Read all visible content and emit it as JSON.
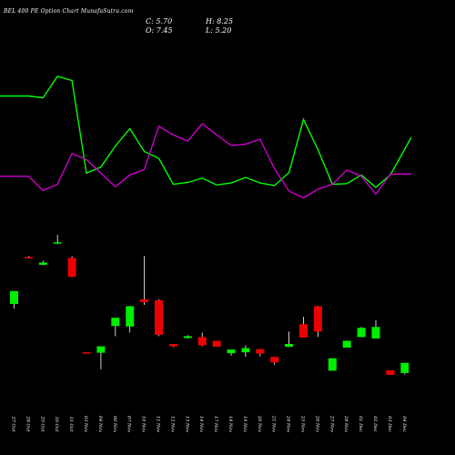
{
  "header": {
    "title": "BEL 400 PE Option Chart MunafaSutra.com",
    "close_label": "C: 5.70",
    "open_label": "O: 7.45",
    "high_label": "H: 8.25",
    "low_label": "L: 5.20"
  },
  "chart_data": {
    "type": "candlestick",
    "title": "BEL 400 PE Option Chart MunafaSutra.com",
    "xlabel": "",
    "ylabel": "",
    "grid": false,
    "legend": "none",
    "categories": [
      "27 Oct",
      "28 Oct",
      "29 Oct",
      "30 Oct",
      "31 Oct",
      "03 Nov",
      "04 Nov",
      "06 Nov",
      "07 Nov",
      "10 Nov",
      "11 Nov",
      "12 Nov",
      "13 Nov",
      "14 Nov",
      "17 Nov",
      "18 Nov",
      "19 Nov",
      "20 Nov",
      "21 Nov",
      "24 Nov",
      "25 Nov",
      "26 Nov",
      "27 Nov",
      "28 Nov",
      "01 Dec",
      "02 Dec",
      "03 Dec",
      "04 Dec"
    ],
    "candles": {
      "open": [
        29.8,
        37.2,
        36.0,
        40.2,
        37.0,
        16.5,
        17.8,
        24.0,
        22.1,
        27.4,
        27.8,
        18.3,
        20.0,
        19.8,
        19.0,
        16.3,
        16.5,
        16.2,
        15.5,
        17.7,
        22.6,
        26.5,
        15.2,
        19.0,
        21.8,
        22.0,
        12.6,
        14.2
      ],
      "high": [
        29.8,
        37.4,
        36.4,
        42.0,
        37.4,
        16.5,
        17.8,
        24.0,
        26.6,
        37.4,
        28.0,
        18.3,
        20.2,
        20.8,
        19.0,
        16.5,
        18.0,
        16.2,
        15.5,
        21.0,
        24.2,
        26.6,
        15.2,
        19.0,
        22.0,
        23.5,
        12.6,
        14.2
      ],
      "low": [
        26.0,
        37.0,
        35.4,
        40.0,
        32.8,
        16.4,
        12.8,
        20.0,
        20.8,
        26.8,
        20.0,
        17.6,
        19.5,
        17.8,
        18.6,
        15.8,
        15.5,
        15.6,
        13.8,
        17.6,
        21.4,
        19.8,
        12.8,
        18.3,
        20.0,
        19.8,
        11.8,
        11.7
      ],
      "close": [
        27.0,
        37.0,
        35.5,
        40.4,
        32.9,
        16.4,
        16.4,
        22.2,
        26.5,
        28.0,
        20.3,
        17.8,
        19.6,
        18.0,
        17.7,
        17.1,
        17.4,
        17.2,
        14.3,
        18.3,
        19.7,
        21.0,
        12.5,
        17.5,
        19.8,
        19.5,
        11.6,
        12.0
      ],
      "color": [
        "green",
        "red",
        "green",
        "green",
        "red",
        "red",
        "green",
        "green",
        "green",
        "red",
        "red",
        "red",
        "green",
        "red",
        "red",
        "green",
        "green",
        "red",
        "red",
        "green",
        "red",
        "red",
        "green",
        "green",
        "green",
        "green",
        "red",
        "green"
      ]
    },
    "series": [
      {
        "color": "#00ff00",
        "values": [
          83.3,
          83.3,
          83.0,
          86.5,
          85.8,
          70.8,
          71.8,
          75.2,
          78.0,
          74.3,
          73.2,
          69.0,
          69.3,
          70.0,
          68.9,
          69.2,
          70.1,
          69.2,
          68.8,
          70.9,
          79.5,
          74.6,
          69.0,
          69.1,
          70.5,
          68.5,
          70.5,
          76.6
        ]
      },
      {
        "color": "#cc00cc",
        "values": [
          70.3,
          70.3,
          68.0,
          69.0,
          74.0,
          73.0,
          70.8,
          68.6,
          70.5,
          71.4,
          78.4,
          77.0,
          76.0,
          78.8,
          77.0,
          75.3,
          75.5,
          76.3,
          71.5,
          67.9,
          66.8,
          68.2,
          69.0,
          71.3,
          70.3,
          67.4,
          70.6,
          70.7
        ]
      }
    ]
  }
}
